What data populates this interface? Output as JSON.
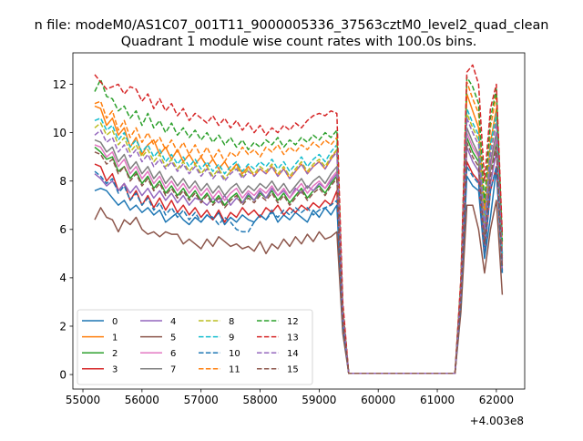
{
  "figure": {
    "suptitle": "n file: modeM0/AS1C07_001T11_9000005336_37563cztM0_level2_quad_clean",
    "title": "Quadrant 1 module wise count rates with 100.0s bins.",
    "offset_label": "+4.003e8"
  },
  "chart_data": {
    "type": "line",
    "title": "Quadrant 1 module wise count rates with 100.0s bins.",
    "xlabel": "",
    "ylabel": "",
    "xlim": [
      54830,
      62480
    ],
    "ylim": [
      -0.6,
      13.3
    ],
    "x_offset": 400300000,
    "xticks": [
      55000,
      56000,
      57000,
      58000,
      59000,
      60000,
      61000,
      62000
    ],
    "yticks": [
      0,
      2,
      4,
      6,
      8,
      10,
      12
    ],
    "grid": false,
    "legend_position": "lower-left",
    "legend_columns": 4,
    "x": [
      55200,
      55300,
      55400,
      55500,
      55600,
      55700,
      55800,
      55900,
      56000,
      56100,
      56200,
      56300,
      56400,
      56500,
      56600,
      56700,
      56800,
      56900,
      57000,
      57100,
      57200,
      57300,
      57400,
      57500,
      57600,
      57700,
      57800,
      57900,
      58000,
      58100,
      58200,
      58300,
      58400,
      58500,
      58600,
      58700,
      58800,
      58900,
      59000,
      59100,
      59200,
      59300,
      59400,
      59500,
      61300,
      61400,
      61500,
      61600,
      61700,
      61800,
      61900,
      62000,
      62100
    ],
    "series": [
      {
        "name": "0",
        "color": "#1f77b4",
        "dash": "solid",
        "values": [
          7.6,
          7.7,
          7.6,
          7.3,
          7.0,
          7.2,
          6.8,
          7.0,
          6.7,
          6.9,
          6.6,
          6.8,
          6.3,
          6.5,
          6.7,
          6.4,
          6.2,
          6.5,
          6.3,
          6.6,
          6.4,
          6.7,
          6.2,
          6.5,
          6.3,
          6.6,
          6.4,
          6.3,
          6.6,
          6.4,
          6.8,
          6.3,
          6.6,
          6.4,
          6.7,
          6.5,
          6.3,
          6.8,
          6.5,
          6.9,
          6.6,
          7.0,
          2.0,
          0.05,
          0.05,
          3.0,
          8.2,
          7.8,
          7.6,
          4.8,
          6.5,
          8.5,
          4.2
        ]
      },
      {
        "name": "1",
        "color": "#ff7f0e",
        "dash": "solid",
        "values": [
          11.1,
          11.0,
          10.3,
          10.6,
          9.9,
          10.2,
          9.4,
          9.8,
          9.1,
          9.5,
          9.7,
          9.1,
          9.4,
          8.9,
          9.3,
          8.8,
          9.1,
          8.7,
          9.0,
          8.6,
          8.9,
          8.5,
          8.8,
          8.4,
          8.7,
          8.3,
          8.6,
          8.2,
          8.5,
          8.3,
          8.6,
          8.2,
          8.5,
          8.1,
          8.4,
          8.7,
          8.3,
          8.6,
          8.8,
          8.5,
          8.9,
          9.3,
          2.5,
          0.05,
          0.05,
          3.5,
          11.6,
          10.9,
          10.2,
          6.5,
          9.6,
          11.0,
          5.0
        ]
      },
      {
        "name": "2",
        "color": "#2ca02c",
        "dash": "solid",
        "values": [
          9.4,
          9.2,
          8.9,
          9.0,
          8.4,
          8.6,
          8.1,
          8.4,
          7.9,
          8.2,
          7.7,
          8.0,
          7.5,
          7.8,
          7.4,
          7.7,
          7.3,
          7.6,
          7.2,
          7.5,
          7.1,
          7.4,
          7.0,
          7.3,
          7.5,
          7.1,
          7.4,
          7.2,
          7.5,
          7.3,
          7.6,
          7.2,
          7.5,
          7.1,
          7.4,
          7.7,
          7.3,
          7.6,
          7.8,
          7.5,
          7.9,
          8.2,
          2.3,
          0.05,
          0.05,
          3.2,
          9.8,
          9.2,
          8.8,
          5.6,
          8.5,
          9.6,
          4.5
        ]
      },
      {
        "name": "3",
        "color": "#d62728",
        "dash": "solid",
        "values": [
          8.7,
          8.6,
          8.0,
          8.3,
          7.6,
          7.9,
          7.2,
          7.6,
          7.0,
          7.4,
          6.9,
          7.3,
          6.8,
          7.2,
          6.7,
          7.0,
          6.6,
          6.9,
          6.5,
          6.8,
          6.4,
          6.8,
          6.3,
          6.7,
          6.5,
          6.9,
          6.6,
          6.8,
          6.5,
          6.9,
          6.7,
          7.0,
          6.6,
          6.9,
          6.7,
          7.0,
          6.8,
          7.1,
          6.9,
          7.2,
          7.0,
          7.6,
          2.1,
          0.05,
          0.05,
          3.1,
          8.8,
          8.3,
          8.0,
          5.0,
          7.6,
          8.6,
          4.3
        ]
      },
      {
        "name": "4",
        "color": "#9467bd",
        "dash": "solid",
        "values": [
          8.3,
          8.1,
          7.8,
          8.0,
          7.6,
          7.9,
          7.5,
          7.8,
          7.4,
          7.7,
          7.3,
          7.6,
          7.2,
          7.5,
          7.1,
          7.4,
          7.0,
          7.3,
          7.2,
          7.0,
          7.3,
          7.1,
          7.4,
          7.0,
          7.3,
          7.1,
          7.5,
          7.2,
          7.6,
          7.3,
          7.7,
          7.4,
          7.6,
          7.3,
          7.7,
          7.5,
          7.8,
          7.6,
          7.9,
          7.7,
          8.0,
          8.3,
          2.2,
          0.05,
          0.05,
          3.2,
          9.4,
          8.8,
          8.4,
          5.2,
          7.9,
          9.2,
          4.3
        ]
      },
      {
        "name": "5",
        "color": "#8c564b",
        "dash": "solid",
        "values": [
          6.4,
          6.9,
          6.5,
          6.4,
          5.9,
          6.4,
          6.2,
          6.5,
          6.0,
          5.8,
          5.9,
          5.7,
          5.9,
          5.8,
          5.8,
          5.4,
          5.6,
          5.4,
          5.2,
          5.6,
          5.3,
          5.7,
          5.5,
          5.3,
          5.4,
          5.2,
          5.3,
          5.1,
          5.5,
          5.0,
          5.4,
          5.2,
          5.6,
          5.3,
          5.7,
          5.4,
          5.8,
          5.5,
          5.9,
          5.6,
          5.7,
          5.9,
          1.7,
          0.05,
          0.05,
          2.6,
          7.0,
          7.0,
          6.0,
          4.2,
          6.0,
          7.2,
          3.3
        ]
      },
      {
        "name": "6",
        "color": "#e377c2",
        "dash": "solid",
        "values": [
          9.5,
          9.4,
          9.0,
          9.2,
          8.6,
          8.9,
          8.3,
          8.6,
          8.1,
          8.4,
          7.9,
          8.2,
          7.7,
          8.0,
          7.6,
          7.9,
          7.5,
          7.8,
          7.4,
          7.7,
          7.3,
          7.6,
          7.2,
          7.5,
          7.7,
          7.3,
          7.6,
          7.4,
          7.7,
          7.5,
          7.8,
          7.4,
          7.7,
          7.3,
          7.6,
          7.9,
          7.5,
          7.8,
          8.0,
          7.7,
          8.1,
          8.4,
          2.3,
          0.05,
          0.05,
          3.3,
          10.0,
          9.4,
          9.0,
          5.7,
          8.6,
          9.8,
          4.6
        ]
      },
      {
        "name": "7",
        "color": "#7f7f7f",
        "dash": "solid",
        "values": [
          9.7,
          9.6,
          9.2,
          9.4,
          8.8,
          9.1,
          8.5,
          8.8,
          8.3,
          8.6,
          8.1,
          8.4,
          7.9,
          8.2,
          7.8,
          8.1,
          7.7,
          8.0,
          7.6,
          7.9,
          7.5,
          7.8,
          7.4,
          7.7,
          7.9,
          7.5,
          7.8,
          7.6,
          7.9,
          7.7,
          8.0,
          7.6,
          7.9,
          7.5,
          7.8,
          8.1,
          7.7,
          8.0,
          8.2,
          7.9,
          8.3,
          8.6,
          2.4,
          0.05,
          0.05,
          3.4,
          10.2,
          9.6,
          9.1,
          5.8,
          8.8,
          10.0,
          4.7
        ]
      },
      {
        "name": "8",
        "color": "#bcbd22",
        "dash": "dashed",
        "values": [
          10.2,
          10.4,
          9.9,
          10.1,
          9.5,
          9.8,
          9.2,
          9.5,
          9.0,
          9.3,
          8.8,
          9.1,
          8.6,
          8.9,
          8.5,
          8.8,
          8.4,
          8.7,
          8.3,
          8.6,
          8.2,
          8.5,
          8.1,
          8.4,
          8.6,
          8.2,
          8.5,
          8.3,
          8.6,
          8.4,
          8.7,
          8.3,
          8.6,
          8.2,
          8.5,
          8.8,
          8.4,
          8.7,
          8.9,
          8.6,
          9.0,
          9.3,
          2.5,
          0.05,
          0.05,
          3.6,
          10.8,
          10.2,
          9.7,
          6.2,
          9.3,
          10.6,
          4.9
        ]
      },
      {
        "name": "9",
        "color": "#17becf",
        "dash": "dashed",
        "values": [
          10.5,
          10.6,
          10.1,
          10.3,
          9.7,
          10.0,
          9.4,
          9.7,
          9.2,
          9.5,
          9.0,
          9.3,
          8.8,
          9.1,
          8.7,
          9.0,
          8.6,
          8.9,
          8.5,
          8.8,
          8.4,
          8.7,
          8.3,
          8.6,
          8.8,
          8.4,
          8.7,
          8.5,
          8.8,
          8.6,
          8.9,
          8.5,
          8.8,
          8.4,
          8.7,
          9.0,
          8.6,
          8.9,
          9.1,
          8.8,
          9.2,
          9.5,
          2.6,
          0.05,
          0.05,
          3.7,
          11.0,
          10.4,
          9.9,
          6.3,
          9.5,
          10.8,
          5.0
        ]
      },
      {
        "name": "10",
        "color": "#1f77b4",
        "dash": "dashed",
        "values": [
          8.4,
          8.2,
          7.9,
          8.1,
          7.5,
          7.8,
          7.2,
          7.5,
          7.0,
          7.3,
          6.8,
          7.1,
          6.6,
          6.9,
          6.5,
          6.8,
          6.4,
          6.7,
          6.3,
          6.6,
          6.5,
          6.2,
          6.5,
          6.3,
          6.0,
          5.9,
          5.9,
          6.3,
          6.6,
          6.4,
          6.7,
          6.5,
          6.8,
          6.6,
          6.9,
          6.7,
          6.9,
          6.6,
          6.8,
          6.9,
          7.0,
          7.2,
          2.0,
          0.05,
          0.05,
          3.0,
          8.6,
          8.2,
          7.9,
          5.0,
          7.6,
          8.6,
          4.2
        ]
      },
      {
        "name": "11",
        "color": "#ff7f0e",
        "dash": "dashed",
        "values": [
          11.2,
          11.3,
          10.6,
          10.9,
          10.1,
          10.5,
          9.8,
          10.2,
          9.6,
          10.0,
          9.5,
          9.8,
          9.3,
          9.7,
          9.2,
          9.6,
          9.1,
          9.5,
          9.0,
          9.4,
          8.9,
          9.3,
          8.8,
          9.2,
          9.0,
          9.4,
          9.1,
          9.3,
          9.0,
          9.4,
          9.2,
          9.5,
          9.1,
          9.4,
          9.2,
          9.5,
          9.3,
          9.6,
          9.4,
          9.7,
          9.5,
          9.8,
          2.7,
          0.05,
          0.05,
          3.8,
          12.1,
          11.4,
          10.8,
          6.8,
          10.2,
          11.6,
          5.3
        ]
      },
      {
        "name": "12",
        "color": "#2ca02c",
        "dash": "dashed",
        "values": [
          11.7,
          12.2,
          11.5,
          11.4,
          10.9,
          11.1,
          10.6,
          10.9,
          10.3,
          10.8,
          10.2,
          10.5,
          10.0,
          10.4,
          9.9,
          10.2,
          9.8,
          10.1,
          9.7,
          10.0,
          9.6,
          9.9,
          9.5,
          9.8,
          9.4,
          9.7,
          9.3,
          9.6,
          9.4,
          9.7,
          9.5,
          9.8,
          9.4,
          9.7,
          9.5,
          9.8,
          9.6,
          9.9,
          9.7,
          10.0,
          9.8,
          10.1,
          2.8,
          0.05,
          0.05,
          3.9,
          12.3,
          11.9,
          11.2,
          7.1,
          10.6,
          11.8,
          5.5
        ]
      },
      {
        "name": "13",
        "color": "#d62728",
        "dash": "dashed",
        "values": [
          12.4,
          12.1,
          11.8,
          11.9,
          12.0,
          11.6,
          11.9,
          11.8,
          11.3,
          11.6,
          11.0,
          11.4,
          10.9,
          11.2,
          10.7,
          11.0,
          10.5,
          10.8,
          10.6,
          10.4,
          10.7,
          10.3,
          10.6,
          10.2,
          10.5,
          10.1,
          10.4,
          10.0,
          10.3,
          9.9,
          10.2,
          10.0,
          10.3,
          10.1,
          10.4,
          10.2,
          10.5,
          10.7,
          10.8,
          10.7,
          10.9,
          10.8,
          3.0,
          0.05,
          0.05,
          4.0,
          12.5,
          12.8,
          12.0,
          8.0,
          11.0,
          12.0,
          5.8
        ]
      },
      {
        "name": "14",
        "color": "#9467bd",
        "dash": "dashed",
        "values": [
          9.9,
          10.1,
          9.6,
          9.8,
          9.2,
          9.5,
          9.0,
          9.3,
          8.8,
          9.1,
          8.6,
          8.9,
          8.5,
          8.8,
          8.4,
          8.7,
          8.3,
          8.6,
          8.2,
          8.5,
          8.1,
          8.4,
          8.0,
          8.3,
          8.5,
          8.1,
          8.4,
          8.2,
          8.5,
          8.3,
          8.6,
          8.2,
          8.5,
          8.1,
          8.4,
          8.7,
          8.3,
          8.6,
          8.8,
          8.5,
          8.9,
          9.2,
          2.5,
          0.05,
          0.05,
          3.5,
          10.6,
          10.0,
          9.5,
          6.0,
          9.1,
          10.4,
          4.8
        ]
      },
      {
        "name": "15",
        "color": "#8c564b",
        "dash": "dashed",
        "values": [
          9.2,
          9.1,
          8.7,
          8.9,
          8.3,
          8.6,
          8.0,
          8.3,
          7.8,
          8.1,
          7.6,
          7.9,
          7.4,
          7.7,
          7.3,
          7.6,
          7.2,
          7.5,
          7.1,
          7.4,
          7.0,
          7.3,
          6.9,
          7.2,
          7.4,
          7.0,
          7.3,
          7.1,
          7.4,
          7.2,
          7.5,
          7.1,
          7.4,
          7.0,
          7.3,
          7.6,
          7.2,
          7.5,
          7.7,
          7.4,
          7.8,
          8.1,
          2.2,
          0.05,
          0.05,
          3.2,
          9.6,
          9.0,
          8.6,
          5.4,
          8.2,
          9.4,
          4.4
        ]
      }
    ]
  }
}
